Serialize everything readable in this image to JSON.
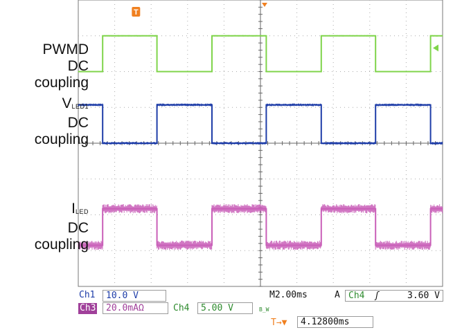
{
  "chart_data": {
    "type": "line",
    "title": "",
    "xlabel": "",
    "ylabel": "",
    "grid": true,
    "time_per_div_ms": 2.0,
    "divisions_x": 10,
    "divisions_y": 8,
    "trigger_marker": "T",
    "series": [
      {
        "name": "PWMD",
        "sub": "",
        "coupling": "DC",
        "coupling_label": "coupling",
        "color": "#7fd44a",
        "high_div": 1.0,
        "low_div": 2.0,
        "noise": 0.02,
        "edges_div": [
          0.67,
          2.16,
          3.67,
          5.16,
          6.67,
          8.16,
          9.67
        ],
        "start_high": false
      },
      {
        "name": "V",
        "sub": "LED1",
        "coupling": "DC",
        "coupling_label": "coupling",
        "color": "#1e3da8",
        "high_div": 2.93,
        "low_div": 4.0,
        "noise": 0.04,
        "edges_div": [
          0.67,
          2.16,
          3.67,
          5.16,
          6.67,
          8.16,
          9.67
        ],
        "start_high": true
      },
      {
        "name": "I",
        "sub": "LED",
        "coupling": "DC",
        "coupling_label": "coupling",
        "color": "#c95fb8",
        "high_div": 5.83,
        "low_div": 6.85,
        "noise": 0.13,
        "edges_div": [
          0.67,
          2.16,
          3.67,
          5.16,
          6.67,
          8.16,
          9.67
        ],
        "start_high": false
      }
    ]
  },
  "status": {
    "ch1_label": "Ch1",
    "ch1_value": "10.0 V",
    "ch3_label": "Ch3",
    "ch3_value": "20.0mAΩ",
    "ch4_label": "Ch4",
    "ch4_value": "5.00 V",
    "bw_mark": "B_W",
    "timebase": "M2.00ms",
    "trigger_mode": "A",
    "trigger_source": "Ch4",
    "trigger_slope": "ʃ",
    "trigger_level": "3.60 V",
    "trigger_offset_label": "T→▼",
    "trigger_offset": "4.12800ms"
  },
  "colors": {
    "pwmd": "#7fd44a",
    "vled": "#1e3da8",
    "iled": "#c95fb8",
    "ch4_text": "#2e8b2e",
    "ch3_bg": "#a0409a",
    "trigger": "#f08020"
  }
}
